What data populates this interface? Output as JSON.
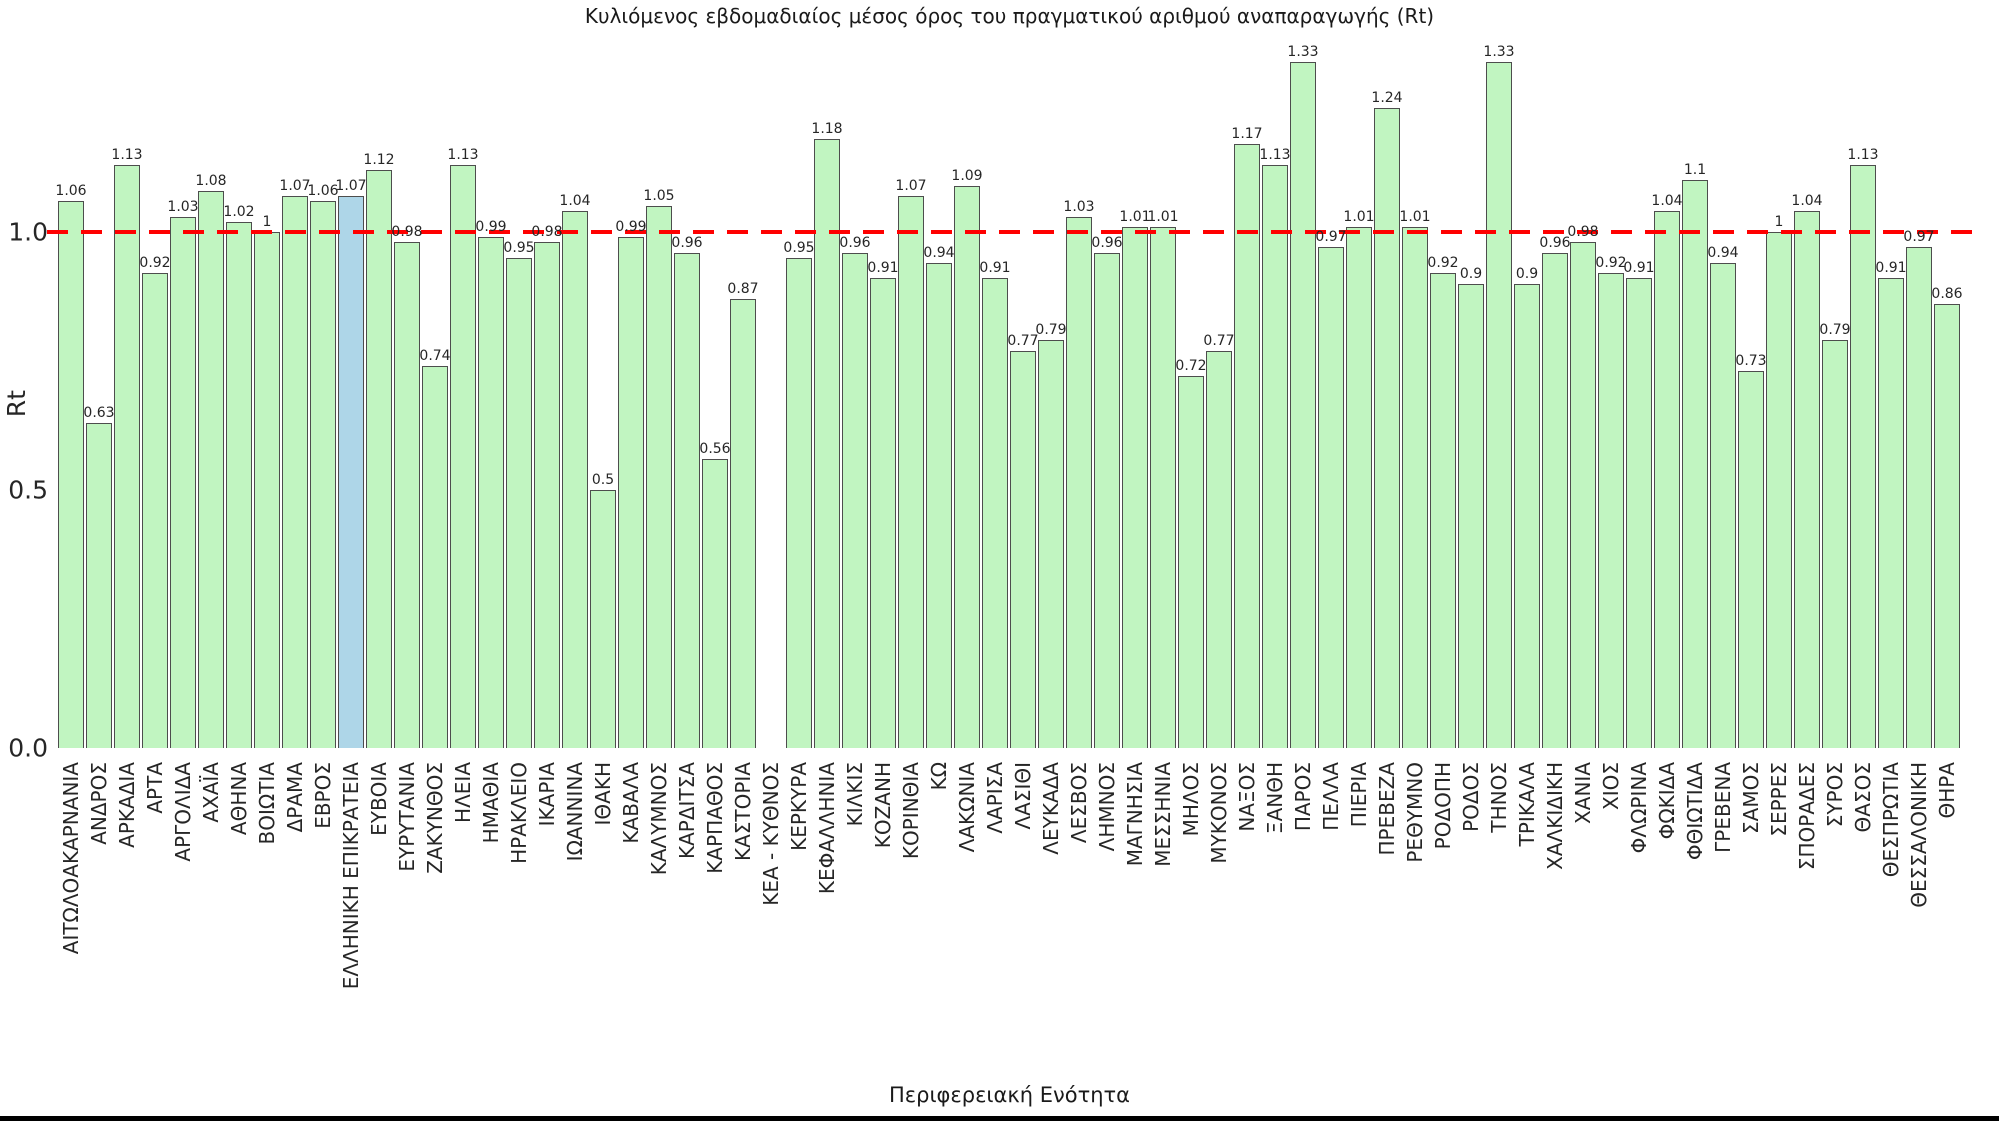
{
  "chart_data": {
    "type": "bar",
    "title": "Κυλιόμενος εβδομαδιαίος μέσος όρος του πραγματικού αριθμού αναπαραγωγής (Rt)",
    "xlabel": "Περιφερειακή Ενότητα",
    "ylabel": "Rt",
    "ylim": [
      0.0,
      1.42
    ],
    "yticks": [
      0.0,
      0.5,
      1.0
    ],
    "ytick_labels": [
      "0.0",
      "0.5",
      "1.0"
    ],
    "grid": false,
    "legend": "none",
    "reference_line": {
      "value": 1.0,
      "color": "#ff0000",
      "style": "dashed"
    },
    "bar_color": "#c1f5c1",
    "bar_border_color": "#4d4d4d",
    "highlight_category": "ΕΛΛΗΝΙΚΗ ΕΠΙΚΡΑΤΕΙΑ",
    "highlight_color": "#aed6e8",
    "categories": [
      "ΑΙΤΩΛΟΑΚΑΡΝΑΝΙΑ",
      "ΑΝΔΡΟΣ",
      "ΑΡΚΑΔΙΑ",
      "ΑΡΤΑ",
      "ΑΡΓΟΛΙΔΑ",
      "ΑΧΑΪΑ",
      "ΑΘΗΝΑ",
      "ΒΟΙΩΤΙΑ",
      "ΔΡΑΜΑ",
      "ΕΒΡΟΣ",
      "ΕΛΛΗΝΙΚΗ ΕΠΙΚΡΑΤΕΙΑ",
      "ΕΥΒΟΙΑ",
      "ΕΥΡΥΤΑΝΙΑ",
      "ΖΑΚΥΝΘΟΣ",
      "ΗΛΕΙΑ",
      "ΗΜΑΘΙΑ",
      "ΗΡΑΚΛΕΙΟ",
      "ΙΚΑΡΙΑ",
      "ΙΩΑΝΝΙΝΑ",
      "ΙΘΑΚΗ",
      "ΚΑΒΑΛΑ",
      "ΚΑΛΥΜΝΟΣ",
      "ΚΑΡΔΙΤΣΑ",
      "ΚΑΡΠΑΘΟΣ",
      "ΚΑΣΤΟΡΙΑ",
      "ΚΕΑ - ΚΥΘΝΟΣ",
      "ΚΕΡΚΥΡΑ",
      "ΚΕΦΑΛΛΗΝΙΑ",
      "ΚΙΛΚΙΣ",
      "ΚΟΖΑΝΗ",
      "ΚΟΡΙΝΘΙΑ",
      "ΚΩ",
      "ΛΑΚΩΝΙΑ",
      "ΛΑΡΙΣΑ",
      "ΛΑΣΙΘΙ",
      "ΛΕΥΚΑΔΑ",
      "ΛΕΣΒΟΣ",
      "ΛΗΜΝΟΣ",
      "ΜΑΓΝΗΣΙΑ",
      "ΜΕΣΣΗΝΙΑ",
      "ΜΗΛΟΣ",
      "ΜΥΚΟΝΟΣ",
      "ΝΑΞΟΣ",
      "ΞΑΝΘΗ",
      "ΠΑΡΟΣ",
      "ΠΕΛΛΑ",
      "ΠΙΕΡΙΑ",
      "ΠΡΕΒΕΖΑ",
      "ΡΕΘΥΜΝΟ",
      "ΡΟΔΟΠΗ",
      "ΡΟΔΟΣ",
      "ΤΗΝΟΣ",
      "ΤΡΙΚΑΛΑ",
      "ΧΑΛΚΙΔΙΚΗ",
      "ΧΑΝΙΑ",
      "ΧΙΟΣ",
      "ΦΛΩΡΙΝΑ",
      "ΦΩΚΙΔΑ",
      "ΦΘΙΩΤΙΔΑ",
      "ΓΡΕΒΕΝΑ",
      "ΣΑΜΟΣ",
      "ΣΕΡΡΕΣ",
      "ΣΠΟΡΑΔΕΣ",
      "ΣΥΡΟΣ",
      "ΘΑΣΟΣ",
      "ΘΕΣΠΡΩΤΙΑ",
      "ΘΕΣΣΑΛΟΝΙΚΗ",
      "ΘΗΡΑ"
    ],
    "values": [
      1.06,
      0.63,
      1.13,
      0.92,
      1.03,
      1.08,
      1.02,
      1,
      1.07,
      1.06,
      1.07,
      1.12,
      0.98,
      0.74,
      1.13,
      0.99,
      0.95,
      0.98,
      1.04,
      0.5,
      0.99,
      1.05,
      0.96,
      0.56,
      0.87,
      null,
      0.95,
      1.18,
      0.96,
      0.91,
      1.07,
      0.94,
      1.09,
      0.91,
      0.77,
      0.79,
      1.03,
      0.96,
      1.01,
      1.01,
      0.72,
      0.77,
      1.17,
      1.13,
      1.33,
      0.97,
      1.01,
      1.24,
      1.01,
      0.92,
      0.9,
      1.33,
      0.9,
      0.96,
      0.98,
      0.92,
      0.91,
      1.04,
      1.1,
      0.94,
      0.73,
      1,
      1.04,
      0.79,
      1.13,
      0.91,
      0.97,
      0.86
    ]
  }
}
